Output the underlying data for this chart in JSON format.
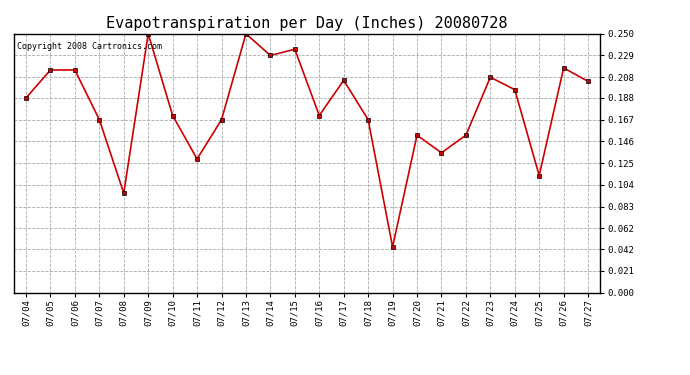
{
  "title": "Evapotranspiration per Day (Inches) 20080728",
  "copyright": "Copyright 2008 Cartronics.com",
  "dates": [
    "07/04",
    "07/05",
    "07/06",
    "07/07",
    "07/08",
    "07/09",
    "07/10",
    "07/11",
    "07/12",
    "07/13",
    "07/14",
    "07/15",
    "07/16",
    "07/17",
    "07/18",
    "07/19",
    "07/20",
    "07/21",
    "07/22",
    "07/23",
    "07/24",
    "07/25",
    "07/26",
    "07/27"
  ],
  "values": [
    0.188,
    0.215,
    0.215,
    0.167,
    0.096,
    0.25,
    0.171,
    0.129,
    0.167,
    0.25,
    0.229,
    0.235,
    0.171,
    0.205,
    0.167,
    0.044,
    0.152,
    0.135,
    0.152,
    0.208,
    0.196,
    0.113,
    0.217,
    0.204
  ],
  "ylim": [
    0.0,
    0.25
  ],
  "yticks": [
    0.0,
    0.021,
    0.042,
    0.062,
    0.083,
    0.104,
    0.125,
    0.146,
    0.167,
    0.188,
    0.208,
    0.229,
    0.25
  ],
  "line_color": "#cc0000",
  "marker": "s",
  "marker_size": 2.5,
  "bg_color": "#ffffff",
  "grid_color": "#aaaaaa",
  "title_fontsize": 11,
  "tick_fontsize": 6.5,
  "copyright_fontsize": 6
}
